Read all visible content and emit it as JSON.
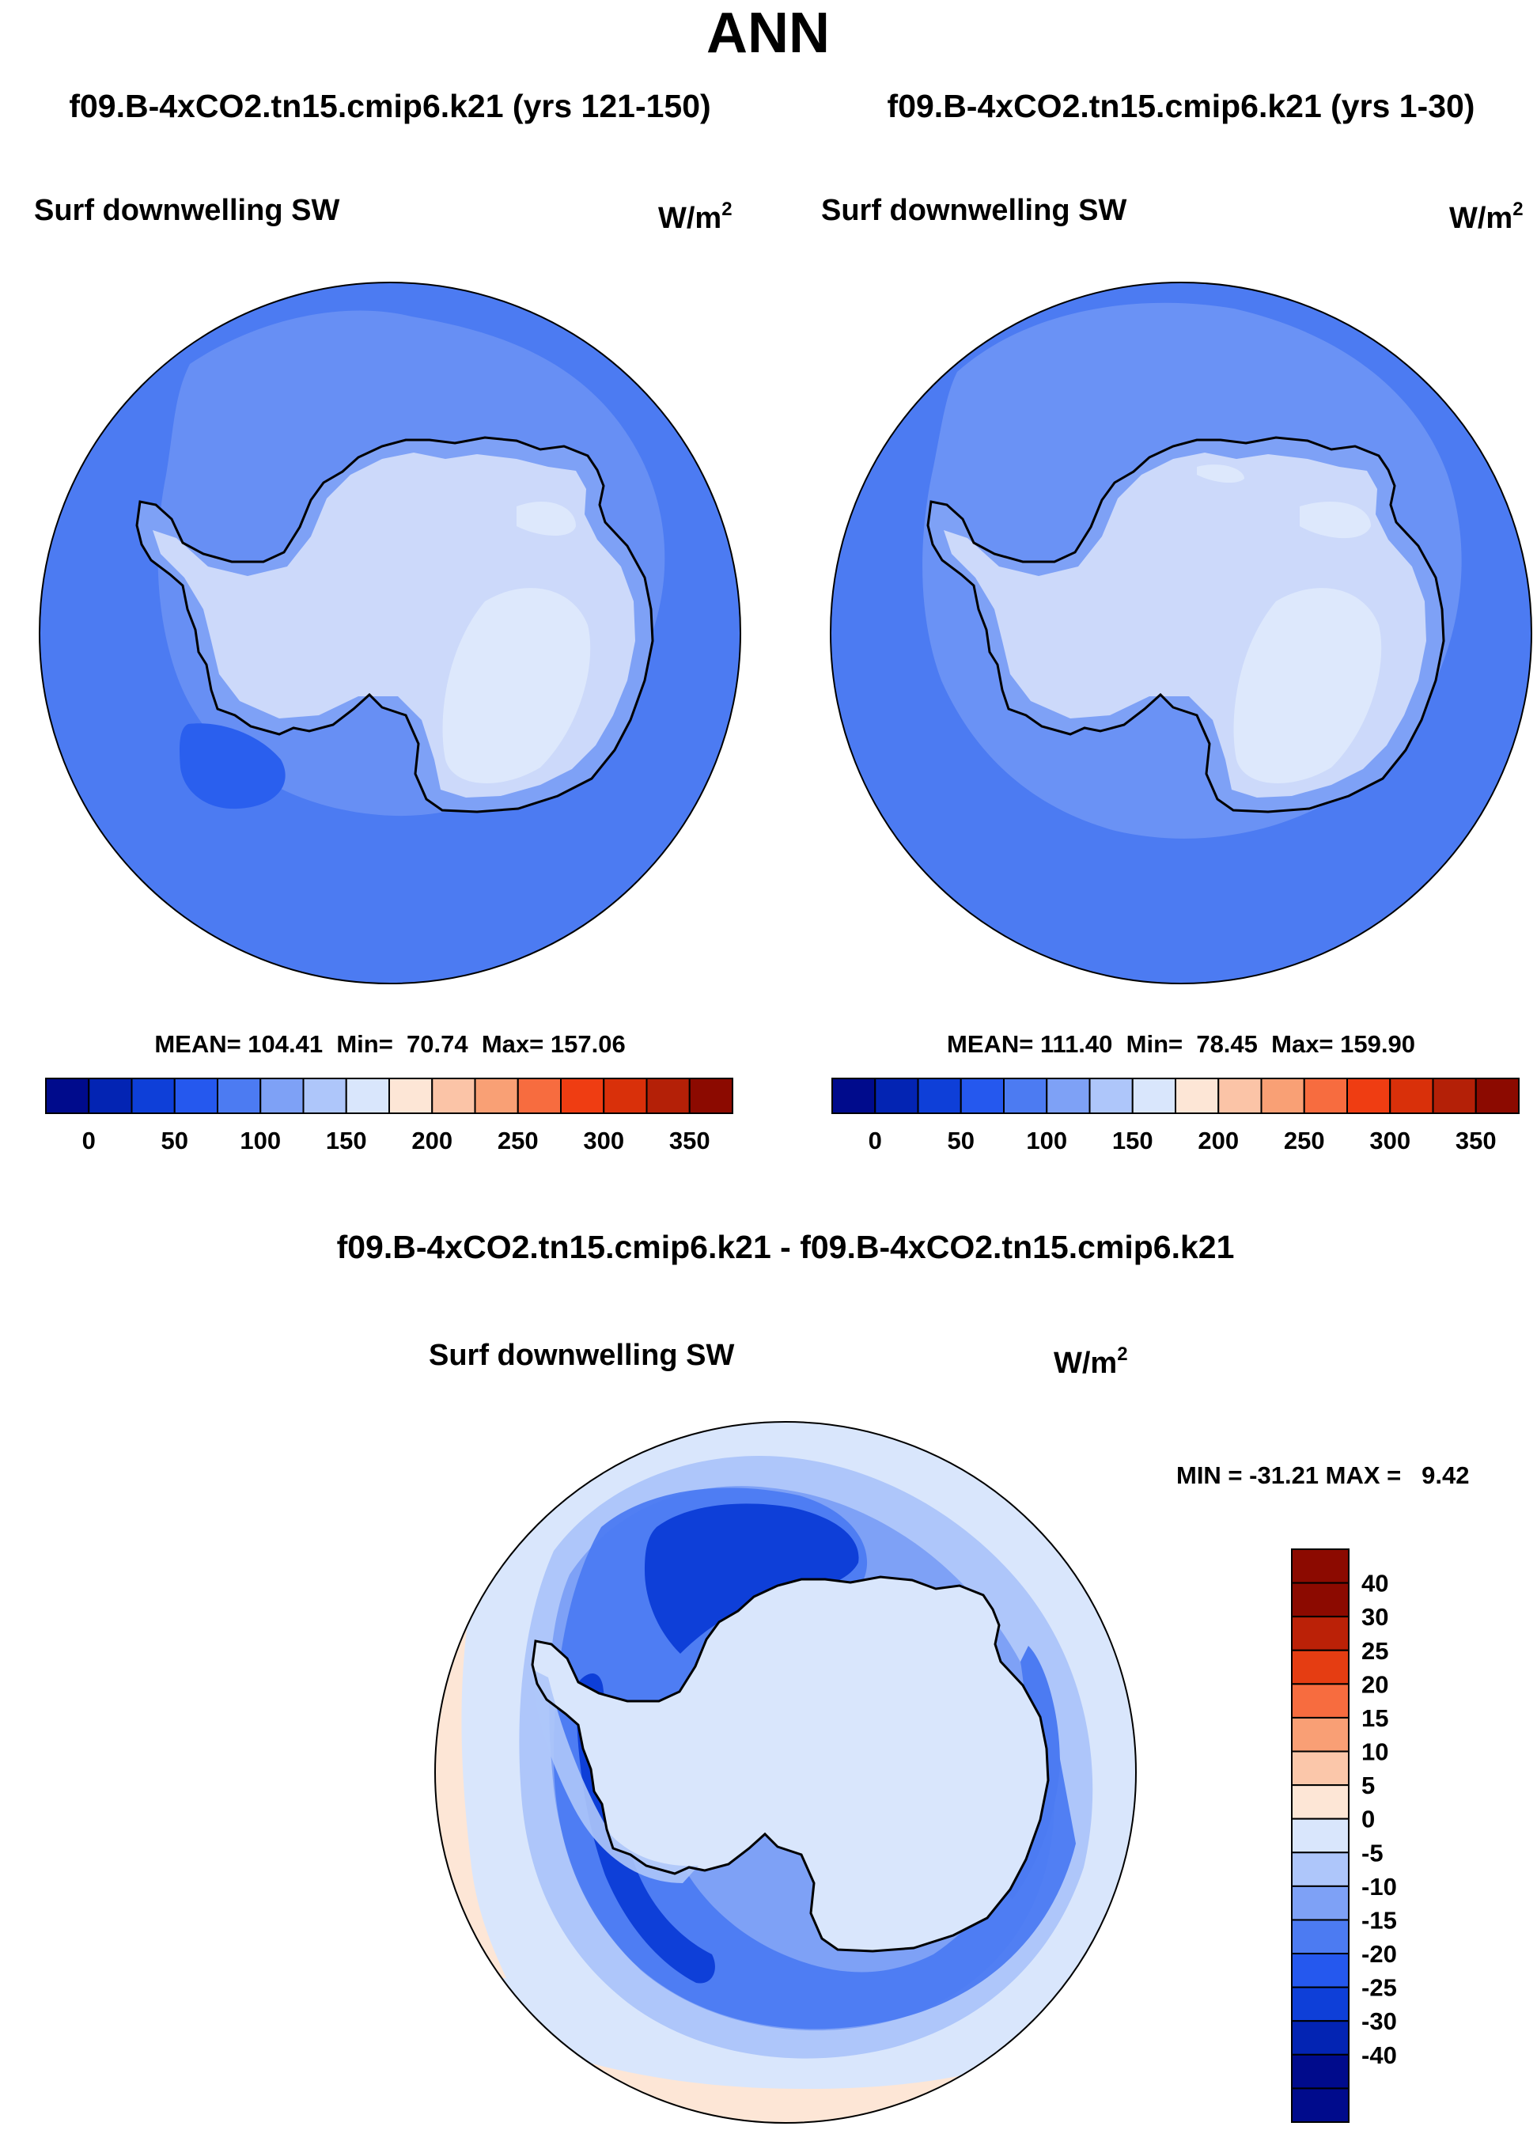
{
  "figure": {
    "season": "ANN",
    "variable_label": "Surf downwelling SW",
    "units_base": "W/m",
    "units_exp": "2",
    "diff_title": "f09.B-4xCO2.tn15.cmip6.k21 - f09.B-4xCO2.tn15.cmip6.k21"
  },
  "panels": [
    {
      "case_title": "f09.B-4xCO2.tn15.cmip6.k21 (yrs 121-150)",
      "stats": "MEAN= 104.41  Min=  70.74  Max= 157.06",
      "mean": 104.41,
      "min": 70.74,
      "max": 157.06
    },
    {
      "case_title": "f09.B-4xCO2.tn15.cmip6.k21 (yrs 1-30)",
      "stats": "MEAN= 111.40  Min=  78.45  Max= 159.90",
      "mean": 111.4,
      "min": 78.45,
      "max": 159.9
    }
  ],
  "diff": {
    "stats": "MIN = -31.21 MAX =   9.42",
    "min": -31.21,
    "max": 9.42
  },
  "abs_colorbar": {
    "colors": [
      "#000b8c",
      "#0324b3",
      "#0e3fd8",
      "#2558ee",
      "#4c7bf2",
      "#7ea1f6",
      "#aec6fa",
      "#d9e6fc",
      "#fde6d6",
      "#fbc4a7",
      "#f9a075",
      "#f76c3f",
      "#ef3d12",
      "#d9300a",
      "#b42007",
      "#8c0a00"
    ],
    "labels": [
      "0",
      "50",
      "100",
      "150",
      "200",
      "250",
      "300",
      "350"
    ]
  },
  "diff_colorbar": {
    "colors_top_to_bottom": [
      "#8c0a00",
      "#bb2107",
      "#e53d12",
      "#f76c3f",
      "#f99f75",
      "#fbc7aa",
      "#fde6d6",
      "#d9e6fc",
      "#aec6fa",
      "#7ea1f6",
      "#4c7bf2",
      "#2558ee",
      "#0e3fd8",
      "#0324b3",
      "#000b8c"
    ],
    "labels_top_to_bottom": [
      "40",
      "30",
      "25",
      "20",
      "15",
      "10",
      "5",
      "0",
      "-5",
      "-10",
      "-15",
      "-20",
      "-25",
      "-30",
      "-40"
    ]
  },
  "palette": {
    "land": "#ccd9fa",
    "land_bright": "#dde8fc",
    "ocean_mid": "#4c7bf2",
    "ocean_light": "#7ea1f6",
    "ocean_dark": "#2a5fee",
    "diff_bg": "#d9e6fc",
    "diff_pos": "#fde6d6"
  },
  "chart_data": [
    {
      "type": "heatmap",
      "title": "Surf downwelling SW",
      "subtitle": "f09.B-4xCO2.tn15.cmip6.k21 (yrs 121-150)",
      "units": "W/m2",
      "projection": "south polar stereographic",
      "mean": 104.41,
      "min": 70.74,
      "max": 157.06,
      "contour_levels": [
        0,
        50,
        100,
        150,
        200,
        250,
        300,
        350
      ]
    },
    {
      "type": "heatmap",
      "title": "Surf downwelling SW",
      "subtitle": "f09.B-4xCO2.tn15.cmip6.k21 (yrs 1-30)",
      "units": "W/m2",
      "projection": "south polar stereographic",
      "mean": 111.4,
      "min": 78.45,
      "max": 159.9,
      "contour_levels": [
        0,
        50,
        100,
        150,
        200,
        250,
        300,
        350
      ]
    },
    {
      "type": "heatmap",
      "title": "Surf downwelling SW",
      "subtitle": "f09.B-4xCO2.tn15.cmip6.k21 - f09.B-4xCO2.tn15.cmip6.k21",
      "units": "W/m2",
      "projection": "south polar stereographic",
      "min": -31.21,
      "max": 9.42,
      "contour_levels": [
        -40,
        -30,
        -25,
        -20,
        -15,
        -10,
        -5,
        0,
        5,
        10,
        15,
        20,
        25,
        30,
        40
      ]
    }
  ]
}
